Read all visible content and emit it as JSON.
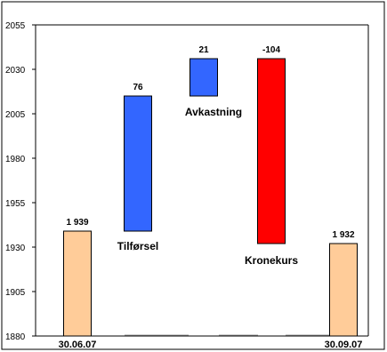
{
  "chart_data": {
    "type": "bar",
    "subtype": "waterfall",
    "title": "",
    "xlabel": "",
    "ylabel": "",
    "ylim": [
      1880,
      2055
    ],
    "yticks": [
      1880,
      1905,
      1930,
      1955,
      1980,
      2005,
      2030,
      2055
    ],
    "ytick_labels": [
      "1880",
      "1905",
      "1930",
      "1955",
      "1980",
      "2005",
      "2030",
      "2055"
    ],
    "grid": false,
    "legend": "none",
    "x_tick_labels": [
      "30.06.07",
      "30.09.07"
    ],
    "bars": [
      {
        "kind": "total",
        "label": "",
        "start": 1880,
        "end": 1939,
        "value_label": "1 939",
        "color": "#FFCC99"
      },
      {
        "kind": "delta",
        "label": "Tilførsel",
        "start": 1939,
        "end": 2015,
        "value_label": "76",
        "color": "#3366FF"
      },
      {
        "kind": "delta",
        "label": "Avkastning",
        "start": 2015,
        "end": 2036,
        "value_label": "21",
        "color": "#3366FF"
      },
      {
        "kind": "delta",
        "label": "Kronekurs",
        "start": 2036,
        "end": 1932,
        "value_label": "-104",
        "color": "#FF0000"
      },
      {
        "kind": "total",
        "label": "",
        "start": 1880,
        "end": 1932,
        "value_label": "1 932",
        "color": "#FFCC99"
      }
    ]
  }
}
